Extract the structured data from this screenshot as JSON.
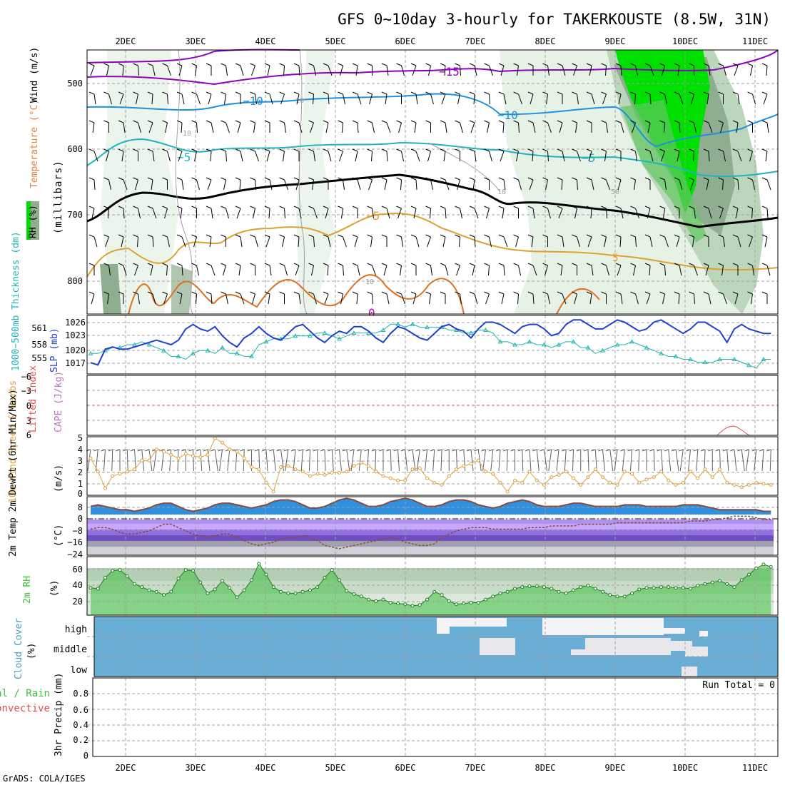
{
  "title": "GFS 0~10day 3-hourly for TAKERKOUSTE (8.5W, 31N)",
  "footer": "GrADS: COLA/IGES",
  "dates": [
    "2DEC",
    "3DEC",
    "4DEC",
    "5DEC",
    "6DEC",
    "7DEC",
    "8DEC",
    "9DEC",
    "10DEC",
    "11DEC"
  ],
  "colors": {
    "grid": "#a0a0a0",
    "rh_light": "#e6f2e6",
    "rh_mid": "#bcd6bc",
    "rh_dark": "#8fae8f",
    "rh_green": "#00e000",
    "temp_purple": "#9000c0",
    "temp_blue": "#1e90e0",
    "temp_cyan": "#20b4c0",
    "temp_black": "#000000",
    "temp_orange": "#e0a030",
    "temp_dorange": "#e07020",
    "slp": "#2040d0",
    "thick": "#20b4b4",
    "wind": "#e0a040",
    "barb": "#606060",
    "temp_fill": "#3090e0",
    "dew_fill": "#9070e0",
    "rh2m": "#40c040",
    "cloud": "#6aaed6",
    "cloud_clear": "#f0f0f0",
    "cape": "#e05050"
  },
  "panels": {
    "upper": {
      "label_rh": "RH (%)",
      "label_temp": "Temperature (°C)",
      "label_wind": "Wind (m/s)",
      "label_unit": "(millibars)",
      "y_ticks": [
        "500",
        "600",
        "700",
        "800"
      ],
      "contour_labels": [
        {
          "text": "−15",
          "color": "temp_purple"
        },
        {
          "text": "−10",
          "color": "temp_blue"
        },
        {
          "text": "−10",
          "color": "temp_blue"
        },
        {
          "text": "−5",
          "color": "temp_cyan"
        },
        {
          "text": "−5",
          "color": "temp_cyan"
        },
        {
          "text": "−5",
          "color": "temp_orange"
        },
        {
          "text": "5",
          "color": "temp_orange"
        },
        {
          "text": "10",
          "color": "grid"
        },
        {
          "text": "10",
          "color": "grid"
        },
        {
          "text": "10",
          "color": "grid"
        },
        {
          "text": "50",
          "color": "grid"
        },
        {
          "text": "10",
          "color": "grid"
        },
        {
          "text": "0",
          "color": "temp_dorange"
        }
      ]
    },
    "slp": {
      "label_thick": "1000−500mb Thickness (dm)",
      "label_slp": "SLP (mb)",
      "left_ticks": [
        "561",
        "558",
        "555"
      ],
      "right_ticks": [
        "1026",
        "1023",
        "1020",
        "1017"
      ]
    },
    "cape": {
      "label_li": "Lifted Index",
      "label_cape": "CAPE (J/kg)",
      "ticks": [
        "−6",
        "−3",
        "0",
        "3",
        "6"
      ]
    },
    "wind": {
      "label": "10m Wind Speed & Barbs",
      "unit": "(m/s)",
      "ticks": [
        "5",
        "4",
        "3",
        "2",
        "1",
        "0"
      ]
    },
    "temp": {
      "label": "2m Temp 2m DewPt (6hr Min/Max)",
      "unit": "(°C)",
      "ticks": [
        "8",
        "0",
        "−8",
        "−16",
        "−24"
      ]
    },
    "rh": {
      "label": "2m RH",
      "unit": "(%)",
      "ticks": [
        "60",
        "40",
        "20"
      ]
    },
    "cloud": {
      "label": "Cloud Cover",
      "unit": "(%)",
      "levels": [
        "high",
        "middle",
        "low"
      ]
    },
    "precip": {
      "label_total": "Total / Rain",
      "label_conv": "Convective",
      "label_unit": "3hr Precip (mm)",
      "run_total": "Run Total = 0",
      "ticks": [
        "0.8",
        "0.6",
        "0.4",
        "0.2",
        "0"
      ]
    }
  },
  "chart_data": {
    "type": "line",
    "x_unit": "3-hour steps from 1DEC 12Z",
    "slp": {
      "name": "SLP (mb)",
      "ylim": [
        1014,
        1027
      ],
      "values": [
        1016.5,
        1016.0,
        1019.5,
        1020.0,
        1019.5,
        1019.5,
        1020.0,
        1020.5,
        1021.0,
        1021.5,
        1021.0,
        1020.5,
        1021.5,
        1024.0,
        1025.0,
        1024.0,
        1023.5,
        1024.5,
        1022.5,
        1021.0,
        1020.0,
        1022.0,
        1023.0,
        1024.5,
        1023.0,
        1022.0,
        1021.5,
        1023.0,
        1024.5,
        1025.0,
        1023.5,
        1022.0,
        1021.0,
        1022.5,
        1023.5,
        1023.0,
        1024.5,
        1024.5,
        1023.5,
        1022.0,
        1021.0,
        1023.0,
        1024.5,
        1024.0,
        1023.0,
        1022.0,
        1021.5,
        1023.0,
        1024.5,
        1025.0,
        1024.0,
        1023.5,
        1022.0,
        1024.0,
        1025.5,
        1025.5,
        1025.0,
        1024.0,
        1023.0,
        1024.5,
        1025.0,
        1025.0,
        1024.0,
        1022.5,
        1023.0,
        1025.0,
        1026.0,
        1026.0,
        1025.0,
        1024.0,
        1024.0,
        1025.0,
        1026.0,
        1025.5,
        1024.5,
        1023.5,
        1024.0,
        1025.5,
        1026.0,
        1025.0,
        1024.0,
        1023.0,
        1024.0,
        1025.5,
        1025.5,
        1024.5,
        1023.5,
        1021.0,
        1024.0,
        1025.0,
        1024.0,
        1023.5,
        1023.0,
        1023.0
      ]
    },
    "thickness": {
      "name": "1000-500mb Thickness (dm)",
      "ylim": [
        553,
        563
      ],
      "values": [
        556.5,
        556.5,
        557.0,
        557.5,
        557.5,
        558.0,
        558.0,
        558.5,
        558.0,
        557.5,
        557.0,
        556.0,
        556.0,
        555.5,
        556.5,
        557.0,
        557.0,
        556.5,
        557.5,
        556.5,
        556.5,
        556.0,
        556.0,
        558.0,
        558.5,
        559.0,
        559.0,
        559.0,
        559.5,
        559.5,
        559.5,
        560.0,
        560.0,
        559.5,
        559.0,
        559.5,
        560.0,
        560.0,
        560.0,
        560.0,
        560.5,
        561.5,
        561.5,
        561.0,
        561.5,
        561.0,
        561.0,
        561.0,
        561.0,
        560.5,
        560.5,
        560.0,
        560.0,
        560.5,
        560.5,
        560.0,
        558.5,
        558.5,
        558.0,
        558.0,
        558.5,
        558.0,
        558.0,
        557.5,
        558.0,
        558.5,
        558.5,
        557.5,
        557.5,
        556.5,
        557.0,
        557.5,
        558.0,
        558.0,
        558.5,
        558.0,
        557.5,
        557.0,
        556.5,
        556.0,
        556.0,
        555.5,
        555.5,
        555.0,
        555.0,
        555.0,
        555.5,
        555.5,
        555.5,
        555.0,
        554.5,
        554.0,
        555.5,
        555.5
      ]
    },
    "wind10m": {
      "name": "10m Wind Speed (m/s)",
      "ylim": [
        0,
        5
      ],
      "values": [
        3.2,
        2.0,
        0.5,
        1.6,
        1.8,
        2.0,
        2.2,
        3.0,
        3.0,
        4.0,
        3.8,
        3.5,
        3.2,
        3.6,
        3.4,
        3.3,
        3.5,
        5.0,
        4.6,
        4.0,
        3.8,
        3.2,
        2.4,
        2.2,
        1.0,
        0.2,
        2.4,
        2.5,
        2.2,
        2.0,
        1.6,
        1.8,
        1.7,
        1.9,
        1.9,
        2.0,
        2.5,
        2.8,
        2.5,
        2.0,
        1.6,
        1.4,
        1.2,
        1.2,
        2.2,
        2.3,
        1.4,
        1.0,
        0.8,
        1.6,
        2.2,
        2.5,
        2.7,
        3.0,
        2.0,
        1.8,
        1.0,
        0.2,
        1.2,
        1.0,
        2.0,
        1.2,
        0.8,
        1.5,
        1.7,
        2.0,
        1.4,
        0.8,
        1.5,
        2.2,
        1.5,
        1.0,
        0.8,
        2.0,
        1.8,
        1.0,
        1.3,
        1.5,
        2.0,
        1.2,
        0.8,
        1.0,
        2.0,
        1.4,
        2.2,
        1.5,
        2.2,
        1.0,
        0.8,
        0.6,
        0.8,
        1.0,
        0.9,
        0.8
      ]
    },
    "temp2m": {
      "name": "2m Temp (°C)",
      "ylim": [
        -25,
        11
      ],
      "values": [
        5,
        6,
        5,
        4,
        3,
        3,
        2,
        3,
        4,
        6,
        7,
        7,
        5,
        3,
        2,
        3,
        4,
        6,
        7,
        7,
        6,
        5,
        4,
        5,
        6,
        8,
        9,
        9,
        8,
        6,
        4,
        4,
        5,
        7,
        9,
        10,
        9,
        7,
        5,
        5,
        6,
        8,
        9,
        10,
        9,
        7,
        5,
        5,
        6,
        8,
        9,
        9,
        8,
        6,
        5,
        4,
        5,
        7,
        8,
        9,
        8,
        6,
        5,
        5,
        5,
        6,
        7,
        7,
        6,
        5,
        5,
        5,
        5,
        6,
        6,
        6,
        5,
        5,
        5,
        5,
        5,
        6,
        6,
        6,
        5,
        4,
        3,
        3,
        3,
        3,
        3,
        3,
        2,
        2
      ]
    },
    "dewpt2m": {
      "name": "2m DewPt (°C)",
      "ylim": [
        -25,
        11
      ],
      "values": [
        -9,
        -8,
        -8,
        -9,
        -11,
        -12,
        -12,
        -11,
        -10,
        -8,
        -6,
        -6,
        -8,
        -10,
        -12,
        -13,
        -14,
        -13,
        -12,
        -12,
        -14,
        -16,
        -18,
        -19,
        -18,
        -17,
        -15,
        -14,
        -14,
        -13,
        -14,
        -16,
        -19,
        -20,
        -21,
        -20,
        -19,
        -18,
        -17,
        -16,
        -15,
        -14,
        -15,
        -17,
        -18,
        -19,
        -19,
        -18,
        -14,
        -12,
        -10,
        -9,
        -8,
        -8,
        -8,
        -9,
        -9,
        -9,
        -9,
        -9,
        -8,
        -8,
        -8,
        -7,
        -7,
        -7,
        -7,
        -6,
        -6,
        -6,
        -6,
        -6,
        -5,
        -5,
        -5,
        -5,
        -5,
        -5,
        -5,
        -5,
        -5,
        -5,
        -4,
        -4,
        -4,
        -3,
        -3,
        -2,
        -1,
        -1,
        -1,
        -2,
        -3,
        -3
      ]
    },
    "rh2m": {
      "name": "2m RH (%)",
      "ylim": [
        0,
        75
      ],
      "values": [
        35,
        34,
        48,
        57,
        58,
        50,
        40,
        36,
        32,
        30,
        26,
        30,
        47,
        58,
        57,
        42,
        28,
        33,
        44,
        35,
        23,
        32,
        45,
        66,
        52,
        36,
        30,
        28,
        28,
        30,
        32,
        36,
        48,
        58,
        45,
        31,
        27,
        24,
        20,
        18,
        20,
        16,
        15,
        14,
        12,
        13,
        20,
        30,
        26,
        18,
        14,
        15,
        16,
        16,
        20,
        24,
        28,
        30,
        34,
        36,
        37,
        37,
        36,
        34,
        30,
        28,
        32,
        36,
        38,
        34,
        30,
        26,
        24,
        24,
        28,
        33,
        35,
        35,
        36,
        36,
        35,
        35,
        34,
        38,
        40,
        42,
        44,
        40,
        36,
        45,
        52,
        60,
        65,
        62
      ]
    }
  }
}
